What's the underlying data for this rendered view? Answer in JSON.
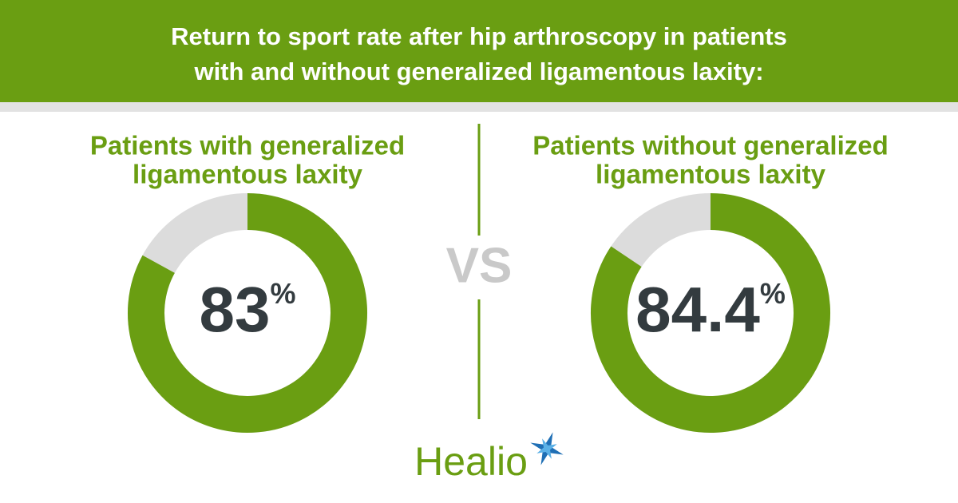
{
  "header": {
    "title": [
      "Return to sport rate after hip arthroscopy in patients",
      "with and without generalized ligamentous laxity:"
    ]
  },
  "separator": "VS",
  "logo": "Healio",
  "chart_data": [
    {
      "type": "donut",
      "title": [
        "Patients with generalized",
        "ligamentous laxity"
      ],
      "values": [
        83
      ],
      "value_labels": [
        "83%"
      ],
      "ylim": [
        0,
        100
      ],
      "color": "#6a9e12",
      "track_color": "#dcdcdc"
    },
    {
      "type": "donut",
      "title": [
        "Patients without generalized",
        "ligamentous laxity"
      ],
      "values": [
        84.4
      ],
      "value_labels": [
        "84.4%"
      ],
      "ylim": [
        0,
        100
      ],
      "color": "#6a9e12",
      "track_color": "#dcdcdc"
    }
  ]
}
